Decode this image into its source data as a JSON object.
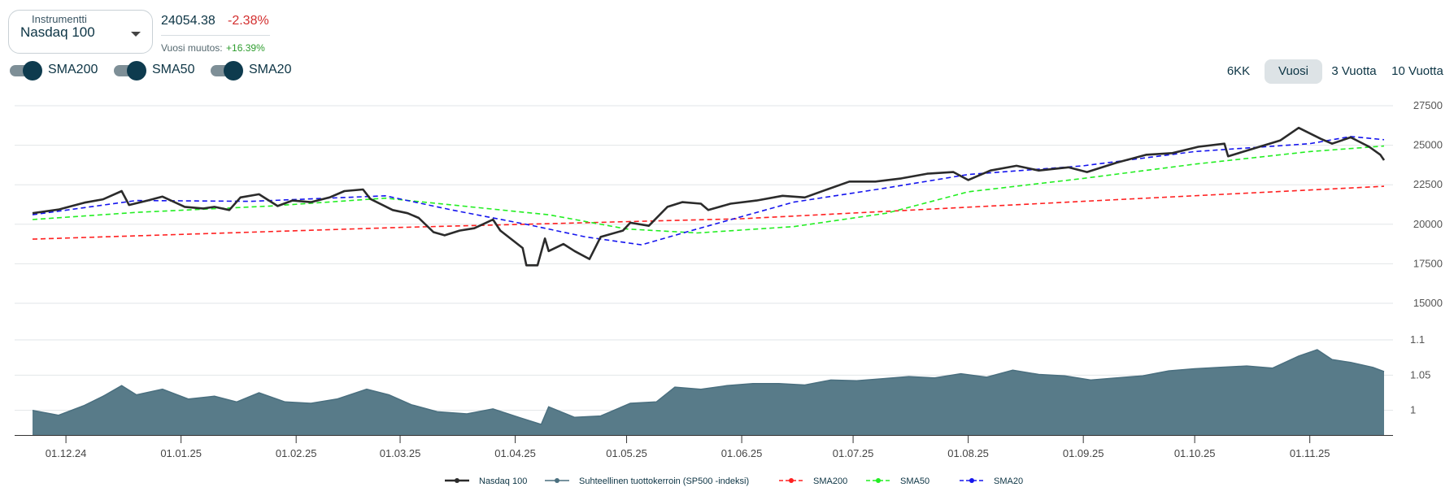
{
  "instrument": {
    "legend": "Instrumentti",
    "selected": "Nasdaq 100"
  },
  "quote": {
    "price": "24054.38",
    "change": "-2.38%",
    "year_change_label": "Vuosi muutos:",
    "year_change_value": "+16.39%"
  },
  "toggles": [
    {
      "label": "SMA200",
      "on": true
    },
    {
      "label": "SMA50",
      "on": true
    },
    {
      "label": "SMA20",
      "on": true
    }
  ],
  "periods": [
    {
      "label": "6KK",
      "active": false
    },
    {
      "label": "Vuosi",
      "active": true
    },
    {
      "label": "3 Vuotta",
      "active": false
    },
    {
      "label": "10 Vuotta",
      "active": false
    }
  ],
  "colors": {
    "price": "#2b2b2b",
    "relative": "#4a6f7f",
    "relative_fill": "#587b89",
    "sma200": "#ff2020",
    "sma50": "#22ee22",
    "sma20": "#1515ee"
  },
  "chart_data": {
    "type": "line",
    "x_ticks": [
      "01.12.24",
      "01.01.25",
      "01.02.25",
      "01.03.25",
      "01.04.25",
      "01.05.25",
      "01.06.25",
      "01.07.25",
      "01.08.25",
      "01.09.25",
      "01.10.25",
      "01.11.25"
    ],
    "y_ticks": [
      "27500",
      "25000",
      "22500",
      "20000",
      "17500",
      "15000"
    ],
    "y2_ticks": [
      "1.1",
      "1.05",
      "1"
    ],
    "ylim": [
      15000,
      27500
    ],
    "y2lim": [
      0.965,
      1.1
    ],
    "x_start": "2024-11-22",
    "x_end": "2025-11-21",
    "legend_position": "bottom-center",
    "series": [
      {
        "name": "Nasdaq 100",
        "values": [
          [
            "2024-11-22",
            20700
          ],
          [
            "2024-11-29",
            20930
          ],
          [
            "2024-12-06",
            21370
          ],
          [
            "2024-12-11",
            21580
          ],
          [
            "2024-12-16",
            22100
          ],
          [
            "2024-12-18",
            21220
          ],
          [
            "2024-12-23",
            21500
          ],
          [
            "2024-12-27",
            21750
          ],
          [
            "2025-01-02",
            21100
          ],
          [
            "2025-01-07",
            21000
          ],
          [
            "2025-01-10",
            21100
          ],
          [
            "2025-01-14",
            20900
          ],
          [
            "2025-01-17",
            21700
          ],
          [
            "2025-01-22",
            21900
          ],
          [
            "2025-01-27",
            21150
          ],
          [
            "2025-01-31",
            21500
          ],
          [
            "2025-02-05",
            21400
          ],
          [
            "2025-02-10",
            21700
          ],
          [
            "2025-02-14",
            22100
          ],
          [
            "2025-02-19",
            22200
          ],
          [
            "2025-02-21",
            21600
          ],
          [
            "2025-02-27",
            20900
          ],
          [
            "2025-03-03",
            20700
          ],
          [
            "2025-03-06",
            20400
          ],
          [
            "2025-03-10",
            19500
          ],
          [
            "2025-03-13",
            19300
          ],
          [
            "2025-03-17",
            19600
          ],
          [
            "2025-03-21",
            19750
          ],
          [
            "2025-03-26",
            20300
          ],
          [
            "2025-03-28",
            19600
          ],
          [
            "2025-04-03",
            18500
          ],
          [
            "2025-04-04",
            17400
          ],
          [
            "2025-04-07",
            17400
          ],
          [
            "2025-04-09",
            19100
          ],
          [
            "2025-04-10",
            18300
          ],
          [
            "2025-04-14",
            18750
          ],
          [
            "2025-04-17",
            18300
          ],
          [
            "2025-04-21",
            17800
          ],
          [
            "2025-04-24",
            19200
          ],
          [
            "2025-04-30",
            19600
          ],
          [
            "2025-05-02",
            20100
          ],
          [
            "2025-05-07",
            19900
          ],
          [
            "2025-05-12",
            21100
          ],
          [
            "2025-05-16",
            21400
          ],
          [
            "2025-05-21",
            21300
          ],
          [
            "2025-05-23",
            20900
          ],
          [
            "2025-05-29",
            21300
          ],
          [
            "2025-06-05",
            21500
          ],
          [
            "2025-06-12",
            21800
          ],
          [
            "2025-06-18",
            21700
          ],
          [
            "2025-06-24",
            22200
          ],
          [
            "2025-06-30",
            22700
          ],
          [
            "2025-07-07",
            22700
          ],
          [
            "2025-07-14",
            22900
          ],
          [
            "2025-07-21",
            23200
          ],
          [
            "2025-07-28",
            23300
          ],
          [
            "2025-08-01",
            22800
          ],
          [
            "2025-08-07",
            23400
          ],
          [
            "2025-08-14",
            23700
          ],
          [
            "2025-08-20",
            23400
          ],
          [
            "2025-08-28",
            23600
          ],
          [
            "2025-09-02",
            23300
          ],
          [
            "2025-09-10",
            23900
          ],
          [
            "2025-09-18",
            24400
          ],
          [
            "2025-09-25",
            24500
          ],
          [
            "2025-10-02",
            24900
          ],
          [
            "2025-10-09",
            25100
          ],
          [
            "2025-10-10",
            24300
          ],
          [
            "2025-10-17",
            24800
          ],
          [
            "2025-10-24",
            25300
          ],
          [
            "2025-10-29",
            26100
          ],
          [
            "2025-11-04",
            25400
          ],
          [
            "2025-11-07",
            25100
          ],
          [
            "2025-11-12",
            25500
          ],
          [
            "2025-11-17",
            24900
          ],
          [
            "2025-11-20",
            24400
          ],
          [
            "2025-11-21",
            24054
          ]
        ]
      },
      {
        "name": "Suhteellinen tuottokerroin (SP500 -indeksi)",
        "values": [
          [
            "2024-11-22",
            1.0
          ],
          [
            "2024-11-29",
            0.993
          ],
          [
            "2024-12-06",
            1.007
          ],
          [
            "2024-12-11",
            1.02
          ],
          [
            "2024-12-16",
            1.035
          ],
          [
            "2024-12-20",
            1.022
          ],
          [
            "2024-12-27",
            1.03
          ],
          [
            "2025-01-03",
            1.016
          ],
          [
            "2025-01-10",
            1.02
          ],
          [
            "2025-01-16",
            1.012
          ],
          [
            "2025-01-22",
            1.025
          ],
          [
            "2025-01-29",
            1.012
          ],
          [
            "2025-02-05",
            1.01
          ],
          [
            "2025-02-12",
            1.016
          ],
          [
            "2025-02-20",
            1.03
          ],
          [
            "2025-02-26",
            1.022
          ],
          [
            "2025-03-04",
            1.008
          ],
          [
            "2025-03-11",
            0.998
          ],
          [
            "2025-03-19",
            0.995
          ],
          [
            "2025-03-26",
            1.002
          ],
          [
            "2025-04-02",
            0.99
          ],
          [
            "2025-04-08",
            0.98
          ],
          [
            "2025-04-10",
            1.005
          ],
          [
            "2025-04-17",
            0.99
          ],
          [
            "2025-04-24",
            0.992
          ],
          [
            "2025-05-02",
            1.01
          ],
          [
            "2025-05-09",
            1.012
          ],
          [
            "2025-05-14",
            1.033
          ],
          [
            "2025-05-21",
            1.03
          ],
          [
            "2025-05-28",
            1.035
          ],
          [
            "2025-06-04",
            1.038
          ],
          [
            "2025-06-11",
            1.038
          ],
          [
            "2025-06-18",
            1.036
          ],
          [
            "2025-06-25",
            1.043
          ],
          [
            "2025-07-02",
            1.042
          ],
          [
            "2025-07-09",
            1.045
          ],
          [
            "2025-07-16",
            1.048
          ],
          [
            "2025-07-23",
            1.046
          ],
          [
            "2025-07-30",
            1.052
          ],
          [
            "2025-08-06",
            1.047
          ],
          [
            "2025-08-13",
            1.057
          ],
          [
            "2025-08-20",
            1.051
          ],
          [
            "2025-08-27",
            1.049
          ],
          [
            "2025-09-03",
            1.043
          ],
          [
            "2025-09-10",
            1.046
          ],
          [
            "2025-09-17",
            1.049
          ],
          [
            "2025-09-24",
            1.056
          ],
          [
            "2025-10-01",
            1.059
          ],
          [
            "2025-10-08",
            1.061
          ],
          [
            "2025-10-15",
            1.063
          ],
          [
            "2025-10-22",
            1.06
          ],
          [
            "2025-10-29",
            1.077
          ],
          [
            "2025-11-03",
            1.086
          ],
          [
            "2025-11-07",
            1.072
          ],
          [
            "2025-11-12",
            1.068
          ],
          [
            "2025-11-18",
            1.061
          ],
          [
            "2025-11-21",
            1.055
          ]
        ]
      },
      {
        "name": "SMA200",
        "values": [
          [
            "2024-11-22",
            19060
          ],
          [
            "2025-03-01",
            19800
          ],
          [
            "2025-06-01",
            20350
          ],
          [
            "2025-09-01",
            21450
          ],
          [
            "2025-11-21",
            22400
          ]
        ]
      },
      {
        "name": "SMA50",
        "values": [
          [
            "2024-11-22",
            20300
          ],
          [
            "2024-12-20",
            20750
          ],
          [
            "2025-01-25",
            21150
          ],
          [
            "2025-02-25",
            21650
          ],
          [
            "2025-03-20",
            21100
          ],
          [
            "2025-04-10",
            20600
          ],
          [
            "2025-05-01",
            19700
          ],
          [
            "2025-05-20",
            19450
          ],
          [
            "2025-06-15",
            19850
          ],
          [
            "2025-07-10",
            20700
          ],
          [
            "2025-08-01",
            22050
          ],
          [
            "2025-09-01",
            22900
          ],
          [
            "2025-10-01",
            23800
          ],
          [
            "2025-11-01",
            24600
          ],
          [
            "2025-11-21",
            24950
          ]
        ]
      },
      {
        "name": "SMA20",
        "values": [
          [
            "2024-11-22",
            20600
          ],
          [
            "2024-12-20",
            21500
          ],
          [
            "2025-01-20",
            21450
          ],
          [
            "2025-02-25",
            21800
          ],
          [
            "2025-03-15",
            20900
          ],
          [
            "2025-04-05",
            19950
          ],
          [
            "2025-04-20",
            19200
          ],
          [
            "2025-05-05",
            18700
          ],
          [
            "2025-05-20",
            19700
          ],
          [
            "2025-06-15",
            21400
          ],
          [
            "2025-07-10",
            22300
          ],
          [
            "2025-08-01",
            23150
          ],
          [
            "2025-09-01",
            23700
          ],
          [
            "2025-10-01",
            24600
          ],
          [
            "2025-11-01",
            25100
          ],
          [
            "2025-11-12",
            25550
          ],
          [
            "2025-11-21",
            25350
          ]
        ]
      }
    ]
  }
}
